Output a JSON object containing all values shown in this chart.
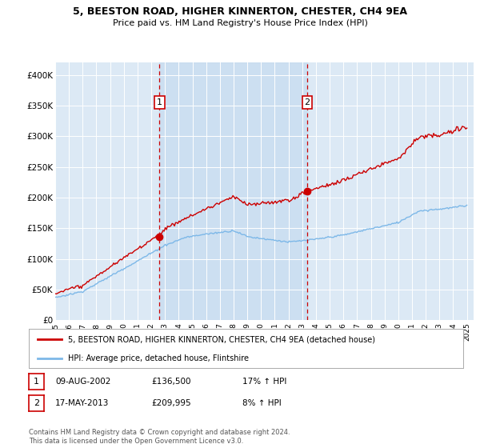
{
  "title_line1": "5, BEESTON ROAD, HIGHER KINNERTON, CHESTER, CH4 9EA",
  "title_line2": "Price paid vs. HM Land Registry's House Price Index (HPI)",
  "ylabel_ticks": [
    "£0",
    "£50K",
    "£100K",
    "£150K",
    "£200K",
    "£250K",
    "£300K",
    "£350K",
    "£400K"
  ],
  "ytick_values": [
    0,
    50000,
    100000,
    150000,
    200000,
    250000,
    300000,
    350000,
    400000
  ],
  "ylim": [
    0,
    420000
  ],
  "xlim_start": 1995.0,
  "xlim_end": 2025.5,
  "background_color": "#dce9f5",
  "line_color_hpi": "#7db8e8",
  "line_color_prop": "#cc0000",
  "vline_color": "#cc0000",
  "purchase1_x": 2002.6,
  "purchase1_y": 136500,
  "purchase2_x": 2013.37,
  "purchase2_y": 209995,
  "legend_label1": "5, BEESTON ROAD, HIGHER KINNERTON, CHESTER, CH4 9EA (detached house)",
  "legend_label2": "HPI: Average price, detached house, Flintshire",
  "table_row1": [
    "1",
    "09-AUG-2002",
    "£136,500",
    "17% ↑ HPI"
  ],
  "table_row2": [
    "2",
    "17-MAY-2013",
    "£209,995",
    "8% ↑ HPI"
  ],
  "footer": "Contains HM Land Registry data © Crown copyright and database right 2024.\nThis data is licensed under the Open Government Licence v3.0.",
  "xtick_years": [
    1995,
    1996,
    1997,
    1998,
    1999,
    2000,
    2001,
    2002,
    2003,
    2004,
    2005,
    2006,
    2007,
    2008,
    2009,
    2010,
    2011,
    2012,
    2013,
    2014,
    2015,
    2016,
    2017,
    2018,
    2019,
    2020,
    2021,
    2022,
    2023,
    2024,
    2025
  ],
  "shade_color": "#c8ddf0",
  "shade_alpha": 0.6
}
